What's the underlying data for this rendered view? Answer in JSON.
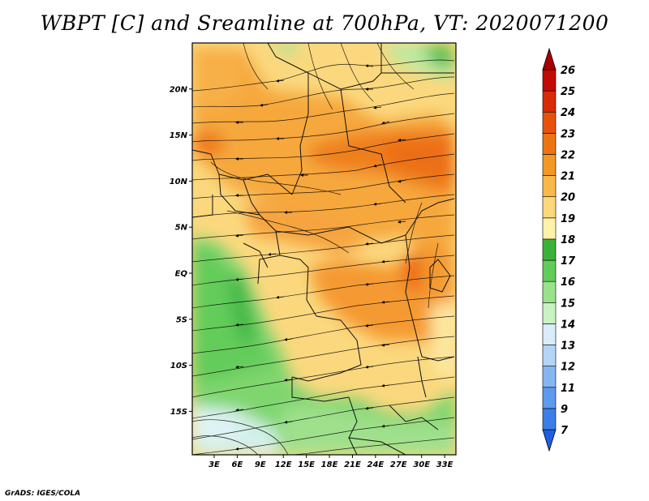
{
  "title": "WBPT [C] and Sreamline at 700hPa, VT: 2020071200",
  "footer": "GrADS: IGES/COLA",
  "map": {
    "variable": "WBPT [C]",
    "level": "700hPa",
    "valid_time": "2020071200",
    "lat_labels": [
      "20N",
      "15N",
      "10N",
      "5N",
      "EQ",
      "5S",
      "10S",
      "15S"
    ],
    "lat_values": [
      20,
      15,
      10,
      5,
      0,
      -5,
      -10,
      -15
    ],
    "lon_labels": [
      "3E",
      "6E",
      "9E",
      "12E",
      "15E",
      "18E",
      "21E",
      "24E",
      "27E",
      "30E",
      "33E"
    ],
    "lon_values": [
      3,
      6,
      9,
      12,
      15,
      18,
      21,
      24,
      27,
      30,
      33
    ]
  },
  "colorbar": {
    "labels": [
      "7",
      "9",
      "11",
      "12",
      "13",
      "14",
      "15",
      "16",
      "17",
      "18",
      "19",
      "20",
      "21",
      "22",
      "23",
      "24",
      "25",
      "26"
    ],
    "colors": [
      "#1e5fe0",
      "#3b7ee8",
      "#5e9aee",
      "#86b6f2",
      "#b4d4f6",
      "#d9ecf8",
      "#c8f2c2",
      "#98e28a",
      "#62cc58",
      "#3ab23a",
      "#fdf3a8",
      "#fbd77a",
      "#f9b949",
      "#f39825",
      "#ee7412",
      "#e6520c",
      "#d92a08",
      "#c40a04",
      "#a80000"
    ]
  }
}
